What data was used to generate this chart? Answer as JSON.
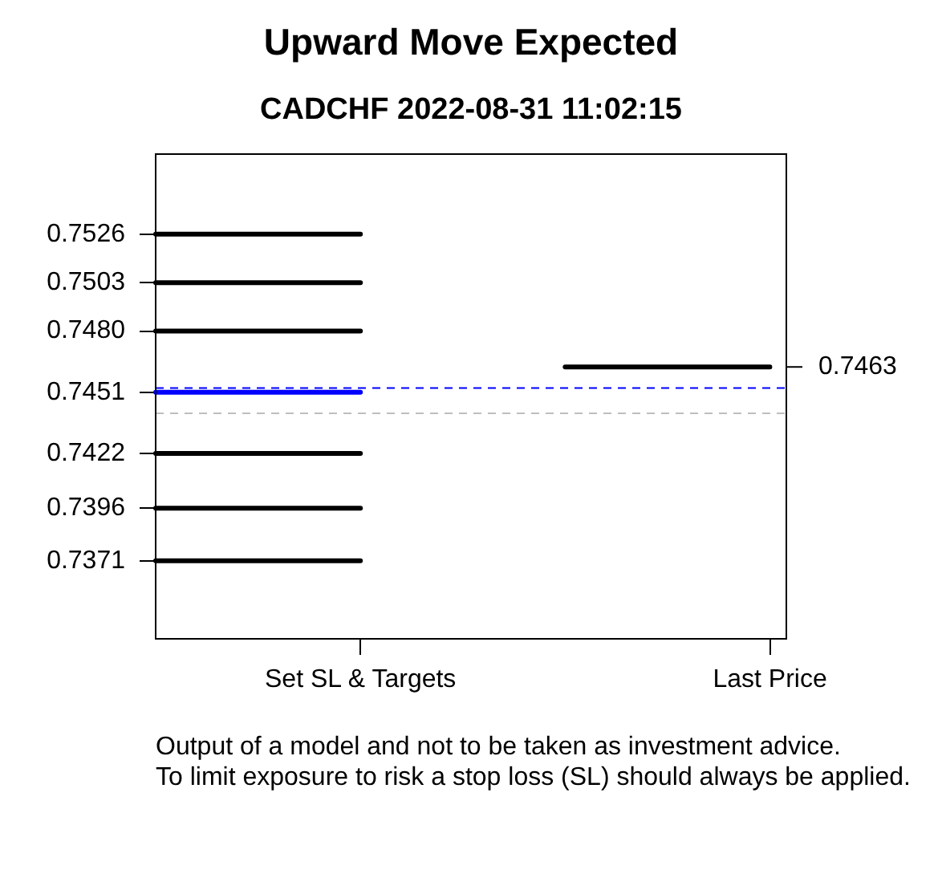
{
  "chart_data": {
    "type": "line",
    "title": "Upward Move Expected",
    "subtitle": "CADCHF 2022-08-31 11:02:15",
    "categories": [
      null,
      "Set SL & Targets",
      null,
      "Last Price"
    ],
    "ylim": [
      0.7334,
      0.7564
    ],
    "yticks": [
      0.7371,
      0.7396,
      0.7422,
      0.7451,
      {
        "value": 0.748,
        "label": "0.7480"
      },
      0.7503,
      0.7526
    ],
    "series": [
      {
        "color": "#000000",
        "values": [
          0.7526,
          0.7526,
          null,
          null
        ]
      },
      {
        "color": "#000000",
        "values": [
          0.7503,
          0.7503,
          null,
          null
        ]
      },
      {
        "color": "#000000",
        "values": [
          0.748,
          0.748,
          null,
          null
        ]
      },
      {
        "color": "#0000ff",
        "values": [
          0.7451,
          0.7451,
          null,
          null
        ]
      },
      {
        "color": "#000000",
        "values": [
          0.7422,
          0.7422,
          null,
          null
        ]
      },
      {
        "color": "#000000",
        "values": [
          0.7396,
          0.7396,
          null,
          null
        ]
      },
      {
        "color": "#000000",
        "values": [
          0.7371,
          0.7371,
          null,
          null
        ]
      },
      {
        "color": "#000000",
        "values": [
          null,
          null,
          0.7463,
          0.7463
        ]
      }
    ],
    "ref_lines": [
      {
        "axis": "y",
        "value": 0.7453,
        "color": "#0000ff",
        "line_style": "dashed"
      },
      {
        "axis": "y",
        "value": 0.7441,
        "color": "#bebebe",
        "line_style": "dashed"
      }
    ],
    "annotations": [
      {
        "text": "0.7463",
        "x": "Last Price",
        "y": 0.7463
      },
      "Output of a model and not to be taken as investment advice.",
      "To limit exposure to risk a stop loss (SL) should always be applied."
    ]
  }
}
